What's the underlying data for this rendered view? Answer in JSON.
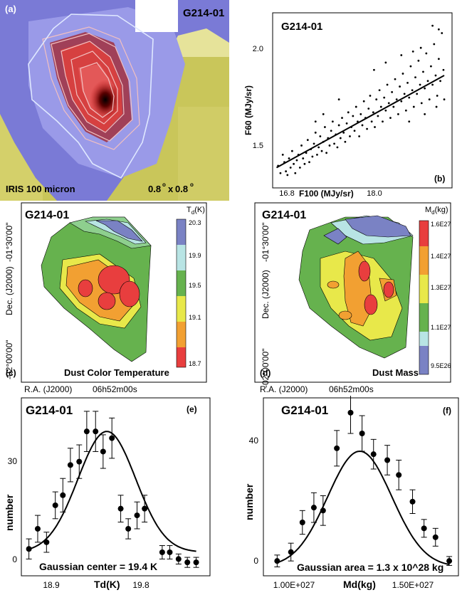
{
  "chart_data": [
    {
      "panel": "(a)",
      "type": "image",
      "title": "G214-01",
      "caption": "IRIS 100 micron",
      "scale_num": "0.8",
      "scale_sep": "x",
      "scale_num2": "0.8",
      "deg": "o"
    },
    {
      "panel": "(b)",
      "type": "scatter",
      "title": "G214-01",
      "xlabel": "F100 (MJy/sr)",
      "ylabel": "F60 (MJy/sr)",
      "xticks": [
        "16.8",
        "18.0"
      ],
      "yticks": [
        "1.5",
        "2.0"
      ],
      "xlim": [
        16.65,
        18.95
      ],
      "ylim": [
        1.22,
        2.17
      ],
      "fit": {
        "x": [
          16.7,
          18.85
        ],
        "y": [
          1.33,
          1.83
        ]
      },
      "points": [
        [
          16.72,
          1.34
        ],
        [
          16.75,
          1.3
        ],
        [
          16.78,
          1.4
        ],
        [
          16.8,
          1.36
        ],
        [
          16.82,
          1.31
        ],
        [
          16.84,
          1.29
        ],
        [
          16.86,
          1.38
        ],
        [
          16.88,
          1.33
        ],
        [
          16.9,
          1.42
        ],
        [
          16.92,
          1.35
        ],
        [
          16.94,
          1.3
        ],
        [
          16.96,
          1.37
        ],
        [
          16.98,
          1.4
        ],
        [
          17.0,
          1.33
        ],
        [
          17.02,
          1.45
        ],
        [
          17.04,
          1.38
        ],
        [
          17.06,
          1.35
        ],
        [
          17.08,
          1.41
        ],
        [
          17.1,
          1.48
        ],
        [
          17.12,
          1.36
        ],
        [
          17.14,
          1.43
        ],
        [
          17.16,
          1.39
        ],
        [
          17.18,
          1.46
        ],
        [
          17.2,
          1.52
        ],
        [
          17.22,
          1.4
        ],
        [
          17.24,
          1.44
        ],
        [
          17.26,
          1.5
        ],
        [
          17.28,
          1.42
        ],
        [
          17.3,
          1.47
        ],
        [
          17.32,
          1.55
        ],
        [
          17.34,
          1.41
        ],
        [
          17.36,
          1.49
        ],
        [
          17.38,
          1.45
        ],
        [
          17.4,
          1.53
        ],
        [
          17.42,
          1.58
        ],
        [
          17.44,
          1.46
        ],
        [
          17.46,
          1.51
        ],
        [
          17.48,
          1.44
        ],
        [
          17.5,
          1.56
        ],
        [
          17.52,
          1.49
        ],
        [
          17.54,
          1.6
        ],
        [
          17.56,
          1.52
        ],
        [
          17.58,
          1.47
        ],
        [
          17.6,
          1.57
        ],
        [
          17.62,
          1.63
        ],
        [
          17.64,
          1.5
        ],
        [
          17.66,
          1.55
        ],
        [
          17.68,
          1.61
        ],
        [
          17.7,
          1.53
        ],
        [
          17.72,
          1.66
        ],
        [
          17.74,
          1.58
        ],
        [
          17.76,
          1.5
        ],
        [
          17.78,
          1.62
        ],
        [
          17.8,
          1.56
        ],
        [
          17.82,
          1.69
        ],
        [
          17.84,
          1.6
        ],
        [
          17.86,
          1.54
        ],
        [
          17.88,
          1.65
        ],
        [
          17.9,
          1.72
        ],
        [
          17.92,
          1.58
        ],
        [
          17.94,
          1.63
        ],
        [
          17.96,
          1.55
        ],
        [
          17.98,
          1.7
        ],
        [
          18.0,
          1.61
        ],
        [
          18.02,
          1.75
        ],
        [
          18.04,
          1.66
        ],
        [
          18.06,
          1.58
        ],
        [
          18.08,
          1.71
        ],
        [
          18.1,
          1.64
        ],
        [
          18.12,
          1.78
        ],
        [
          18.14,
          1.68
        ],
        [
          18.16,
          1.6
        ],
        [
          18.18,
          1.74
        ],
        [
          18.2,
          1.66
        ],
        [
          18.22,
          1.81
        ],
        [
          18.24,
          1.7
        ],
        [
          18.26,
          1.62
        ],
        [
          18.28,
          1.77
        ],
        [
          18.3,
          1.69
        ],
        [
          18.32,
          1.84
        ],
        [
          18.34,
          1.73
        ],
        [
          18.36,
          1.64
        ],
        [
          18.38,
          1.79
        ],
        [
          18.4,
          1.71
        ],
        [
          18.42,
          1.88
        ],
        [
          18.44,
          1.75
        ],
        [
          18.46,
          1.66
        ],
        [
          18.48,
          1.82
        ],
        [
          18.5,
          1.73
        ],
        [
          18.52,
          1.91
        ],
        [
          18.54,
          1.78
        ],
        [
          18.56,
          1.68
        ],
        [
          18.58,
          1.85
        ],
        [
          18.6,
          1.76
        ],
        [
          18.62,
          1.95
        ],
        [
          18.64,
          1.8
        ],
        [
          18.66,
          1.7
        ],
        [
          18.68,
          1.88
        ],
        [
          18.7,
          1.78
        ],
        [
          18.72,
          2.0
        ],
        [
          18.74,
          1.83
        ],
        [
          18.76,
          1.72
        ],
        [
          18.78,
          1.92
        ],
        [
          18.8,
          1.8
        ],
        [
          18.82,
          2.06
        ],
        [
          18.84,
          1.86
        ],
        [
          18.7,
          2.1
        ],
        [
          18.78,
          2.08
        ],
        [
          18.55,
          1.98
        ],
        [
          18.45,
          1.96
        ],
        [
          18.3,
          1.94
        ],
        [
          18.1,
          1.9
        ],
        [
          17.95,
          1.86
        ],
        [
          17.5,
          1.7
        ],
        [
          17.3,
          1.62
        ],
        [
          17.2,
          1.58
        ],
        [
          18.6,
          1.62
        ],
        [
          18.75,
          1.66
        ],
        [
          18.85,
          1.7
        ],
        [
          18.4,
          1.58
        ]
      ]
    },
    {
      "panel": "(c)",
      "type": "heatmap",
      "title": "G214-01",
      "label": "Dust Color Temperature",
      "colorbar_title": "T",
      "colorbar_sub": "d",
      "colorbar_unit": "(K)",
      "colorbar_ticks": [
        "20.3",
        "19.9",
        "19.5",
        "19.1",
        "18.7"
      ],
      "xlabel": "R.A. (J2000)",
      "xtick": "06h52m00s",
      "ylabel": "Dec. (J2000)",
      "ytick_top": "-01°30'00\"",
      "ytick_bottom": "-02°00'00\""
    },
    {
      "panel": "(d)",
      "type": "heatmap",
      "title": "G214-01",
      "label": "Dust Mass",
      "colorbar_title": "M",
      "colorbar_sub": "d",
      "colorbar_unit": "(kg)",
      "colorbar_ticks": [
        "1.6E27",
        "1.4E27",
        "1.3E27",
        "1.1E27",
        "9.5E26"
      ],
      "xlabel": "R.A. (J2000)",
      "xtick": "06h52m00s",
      "ylabel": "Dec. (J2000)",
      "ytick_top": "-01°30'00\"",
      "ytick_bottom": "-02°00'00\""
    },
    {
      "panel": "(e)",
      "type": "scatter",
      "title": "G214-01",
      "xlabel": "Td(K)",
      "ylabel": "number",
      "xticks": [
        "18.9",
        "19.8"
      ],
      "yticks": [
        "0",
        "30"
      ],
      "xlim": [
        18.72,
        20.22
      ],
      "ylim": [
        -3,
        50
      ],
      "annotation": "Gaussian center = 19.4 K",
      "x": [
        18.78,
        18.85,
        18.92,
        18.99,
        19.05,
        19.11,
        19.18,
        19.24,
        19.31,
        19.37,
        19.44,
        19.51,
        19.57,
        19.64,
        19.7,
        19.84,
        19.9,
        19.97,
        20.04,
        20.11
      ],
      "y": [
        5,
        11,
        7,
        18,
        21,
        30,
        31,
        40,
        40,
        34,
        38,
        17,
        11,
        15,
        17,
        4,
        4,
        2,
        1,
        1
      ],
      "err": [
        3,
        4,
        3,
        4,
        5,
        5,
        5,
        6,
        6,
        5,
        6,
        4,
        3,
        4,
        4,
        2,
        2,
        1.5,
        1.5,
        1.5
      ],
      "fit": {
        "amplitude": 36,
        "center": 19.4,
        "sigma": 0.23,
        "baseline": 4
      }
    },
    {
      "panel": "(f)",
      "type": "scatter",
      "title": "G214-01",
      "xlabel": "Md(kg)",
      "ylabel": "number",
      "xticks": [
        "1.00E+027",
        "1.50E+027"
      ],
      "yticks": [
        "0",
        "40"
      ],
      "xlim": [
        0.87,
        1.72
      ],
      "ylim": [
        -3,
        57
      ],
      "annotation": "Gaussian area = 1.3 x 10^28 kg",
      "x": [
        0.93,
        0.99,
        1.04,
        1.09,
        1.13,
        1.19,
        1.25,
        1.3,
        1.35,
        1.41,
        1.46,
        1.52,
        1.57,
        1.62,
        1.68
      ],
      "y": [
        2,
        5,
        15,
        20,
        19,
        40,
        52,
        45,
        38,
        36,
        31,
        22,
        13,
        10,
        2
      ],
      "err": [
        2,
        3,
        4,
        5,
        5,
        6,
        7,
        6,
        5,
        5,
        5,
        4,
        3,
        3,
        1.5
      ],
      "fit": {
        "amplitude": 39,
        "center": 1.29,
        "sigma": 0.14,
        "baseline": 0
      }
    }
  ]
}
